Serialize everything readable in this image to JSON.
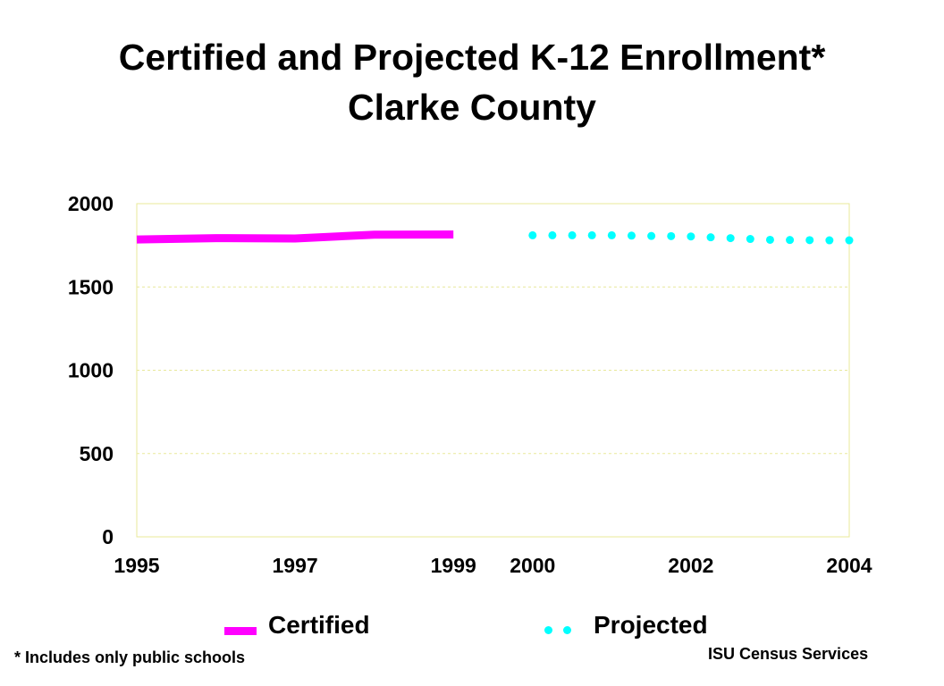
{
  "chart_data": {
    "type": "line",
    "title": "Certified and Projected K-12 Enrollment*",
    "subtitle": "Clarke County",
    "xlim": [
      1995,
      2004
    ],
    "ylim": [
      0,
      2000
    ],
    "y_ticks": [
      "0",
      "500",
      "1000",
      "1500",
      "2000"
    ],
    "x_ticks": [
      "1995",
      "1997",
      "1999",
      "2000",
      "2002",
      "2004"
    ],
    "grid": true,
    "legend_placement": "bottom",
    "series": [
      {
        "name": "Certified",
        "style": "solid",
        "color": "#ff00ff",
        "x": [
          1995,
          1996,
          1997,
          1998,
          1999
        ],
        "y": [
          1785,
          1793,
          1791,
          1814,
          1815
        ]
      },
      {
        "name": "Projected",
        "style": "dotted",
        "color": "#00ffff",
        "x": [
          2000,
          2000.25,
          2000.5,
          2000.75,
          2001,
          2001.25,
          2001.5,
          2001.75,
          2002,
          2002.25,
          2002.5,
          2002.75,
          2003,
          2003.25,
          2003.5,
          2003.75,
          2004
        ],
        "y": [
          1810,
          1810,
          1810,
          1810,
          1810,
          1808,
          1806,
          1805,
          1803,
          1798,
          1793,
          1788,
          1783,
          1782,
          1781,
          1780,
          1780
        ]
      }
    ]
  },
  "footnote": "* Includes only public schools",
  "source": "ISU Census Services"
}
